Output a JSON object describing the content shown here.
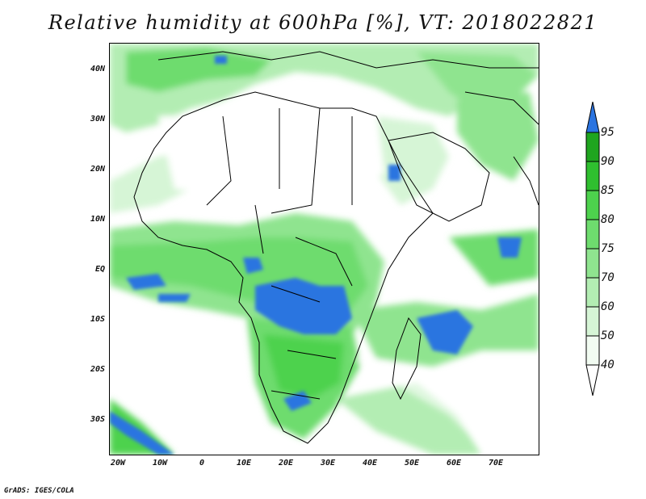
{
  "title": "Relative humidity at 600hPa [%], VT: 2018022821",
  "credit": "GrADS: IGES/COLA",
  "map": {
    "lat_ticks": [
      "40N",
      "30N",
      "20N",
      "10N",
      "EQ",
      "10S",
      "20S",
      "30S"
    ],
    "lon_ticks": [
      "20W",
      "10W",
      "0",
      "10E",
      "20E",
      "30E",
      "40E",
      "50E",
      "60E",
      "70E"
    ]
  },
  "colorbar": {
    "levels": [
      "95",
      "90",
      "85",
      "80",
      "75",
      "70",
      "60",
      "50",
      "40"
    ],
    "colors": {
      "c40": "#f2fcf2",
      "c50": "#d6f5d6",
      "c60": "#b3edb3",
      "c70": "#8fe48f",
      "c75": "#6edc6e",
      "c80": "#4dd24d",
      "c85": "#2fbf2f",
      "c90": "#1fa51f",
      "c95": "#2b74e0"
    }
  }
}
